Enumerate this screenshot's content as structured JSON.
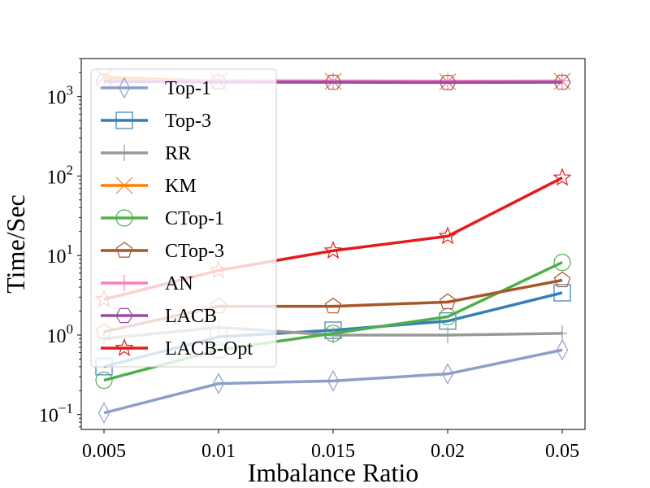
{
  "chart_data": {
    "type": "line",
    "title": "",
    "xlabel": "Imbalance Ratio",
    "ylabel": "Time/Sec",
    "yscale": "log",
    "ylim": [
      0.065,
      3000
    ],
    "categories": [
      "0.005",
      "0.01",
      "0.015",
      "0.02",
      "0.05"
    ],
    "yticks": [
      {
        "value": 0.1,
        "base": "10",
        "exp": "−1"
      },
      {
        "value": 1,
        "base": "10",
        "exp": "0"
      },
      {
        "value": 10,
        "base": "10",
        "exp": "1"
      },
      {
        "value": 100,
        "base": "10",
        "exp": "2"
      },
      {
        "value": 1000,
        "base": "10",
        "exp": "3"
      }
    ],
    "legend_position": "upper-left",
    "series": [
      {
        "name": "Top-1",
        "color": "#8c9fca",
        "marker": "thin_diamond",
        "values": [
          0.105,
          0.245,
          0.265,
          0.325,
          0.65
        ]
      },
      {
        "name": "Top-3",
        "color": "#377eb8",
        "marker": "square",
        "values": [
          0.4,
          0.95,
          1.15,
          1.5,
          3.4
        ]
      },
      {
        "name": "RR",
        "color": "#999999",
        "marker": "vline",
        "values": [
          0.9,
          1.25,
          1.0,
          1.0,
          1.05
        ]
      },
      {
        "name": "KM",
        "color": "#ff7f00",
        "marker": "x",
        "values": [
          1750,
          1550,
          1550,
          1530,
          1550
        ]
      },
      {
        "name": "CTop-1",
        "color": "#4daf4a",
        "marker": "circle",
        "values": [
          0.27,
          0.65,
          1.05,
          1.7,
          8.2
        ]
      },
      {
        "name": "CTop-3",
        "color": "#a65628",
        "marker": "pentagon",
        "values": [
          1.1,
          2.3,
          2.3,
          2.6,
          4.9
        ]
      },
      {
        "name": "AN",
        "color": "#f781bf",
        "marker": "plus",
        "values": [
          1600,
          1580,
          1570,
          1560,
          1570
        ]
      },
      {
        "name": "LACB",
        "color": "#984ea3",
        "marker": "hexagon",
        "values": [
          1550,
          1520,
          1510,
          1500,
          1510
        ]
      },
      {
        "name": "LACB-Opt",
        "color": "#e41a1c",
        "marker": "star",
        "values": [
          2.8,
          6.5,
          11.5,
          17.5,
          95
        ]
      }
    ]
  }
}
